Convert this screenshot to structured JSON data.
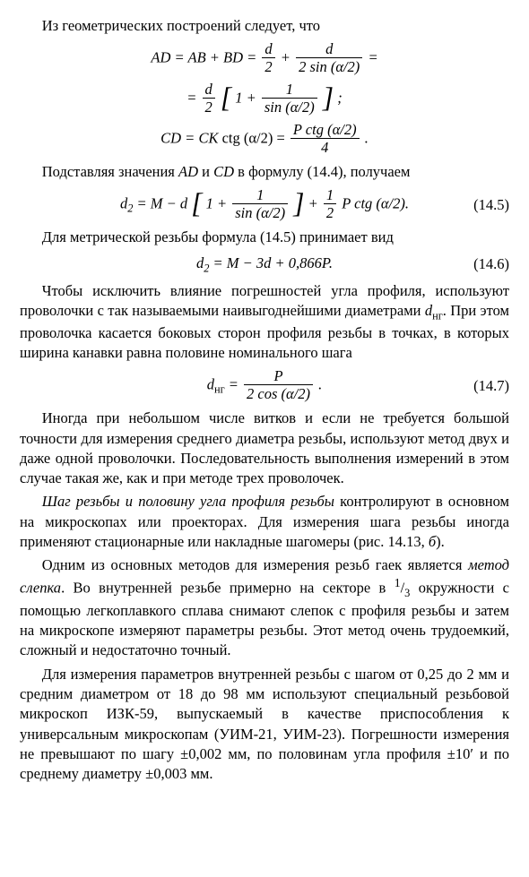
{
  "p1": "Из геометрических построений следует, что",
  "eq1a_lhs": "AD = AB + BD = ",
  "eq1a_f1_num": "d",
  "eq1a_f1_den": "2",
  "eq1a_plus": " + ",
  "eq1a_f2_num": "d",
  "eq1a_f2_den": "2 sin (α/2)",
  "eq1a_tail": " =",
  "eq1b_pre": "= ",
  "eq1b_f1_num": "d",
  "eq1b_f1_den": "2",
  "eq1b_mid1": "1 + ",
  "eq1b_f2_num": "1",
  "eq1b_f2_den": "sin (α/2)",
  "eq1b_tail": " ;",
  "eq1c_lhs": "CD = CK ",
  "eq1c_ctg": "ctg (α/2) = ",
  "eq1c_f_num": "P ctg (α/2)",
  "eq1c_f_den": "4",
  "eq1c_tail": " .",
  "p2a": "Подставляя значения ",
  "p2_AD": "AD",
  "p2_mid": " и ",
  "p2_CD": "CD",
  "p2b": " в формулу (14.4), получаем",
  "eq2_lhs": "d",
  "eq2_sub": "2",
  "eq2_eq": " = M − d",
  "eq2_mid1": "1 + ",
  "eq2_f1_num": "1",
  "eq2_f1_den": "sin (α/2)",
  "eq2_plus": " + ",
  "eq2_f2_num": "1",
  "eq2_f2_den": "2",
  "eq2_tail": " P ctg (α/2).",
  "eq2_num": "(14.5)",
  "p3": "Для метрической резьбы формула (14.5) принимает вид",
  "eq3_body": "d",
  "eq3_sub": "2",
  "eq3_rest": " = M − 3d + 0,866P.",
  "eq3_num": "(14.6)",
  "p4a": "Чтобы исключить влияние погрешностей угла профиля, используют проволочки с так называемыми наивыгоднейшими диаметрами ",
  "p4_d": "d",
  "p4_dsub": "нг",
  "p4b": ". При этом проволочка касается боковых сторон профиля резьбы в точках, в которых ширина канавки равна половине номинального шага",
  "eq4_lhs": "d",
  "eq4_sub": "нг",
  "eq4_eq": " = ",
  "eq4_f_num": "P",
  "eq4_f_den": "2 cos (α/2)",
  "eq4_tail": " .",
  "eq4_num": "(14.7)",
  "p5": "Иногда при небольшом числе витков и если не требуется большой точности для измерения среднего диаметра резьбы, используют метод двух и даже одной проволочки. Последовательность выполнения измерений в этом случае такая же, как и при методе трех проволочек.",
  "p6_em": "Шаг резьбы и половину угла профиля резьбы",
  "p6_rest": " контролируют в основном на микроскопах или проекторах. Для измерения шага резьбы иногда применяют стационарные или накладные шагомеры (рис. 14.13, ",
  "p6_fig": "б",
  "p6_tail": ").",
  "p7a": "Одним из основных методов для измерения резьб гаек является ",
  "p7_em": "метод слепка",
  "p7b": ". Во внутренней резьбе примерно на секторе в ",
  "p7_frac_num": "1",
  "p7_frac_den": "3",
  "p7c": " окружности с помощью легкоплавкого сплава снимают слепок с профиля резьбы и затем на микроскопе измеряют параметры резьбы. Этот метод очень трудоемкий, сложный и недостаточно точный.",
  "p8": "Для измерения параметров внутренней резьбы с шагом от 0,25 до 2 мм и средним диаметром от 18 до 98 мм используют специальный резьбовой микроскоп ИЗК-59, выпускаемый в качестве приспособления к универсальным микроскопам (УИМ-21, УИМ-23). Погрешности измерения не превышают по шагу ±0,002 мм, по половинам угла профиля ±10′ и по среднему диаметру ±0,003 мм."
}
